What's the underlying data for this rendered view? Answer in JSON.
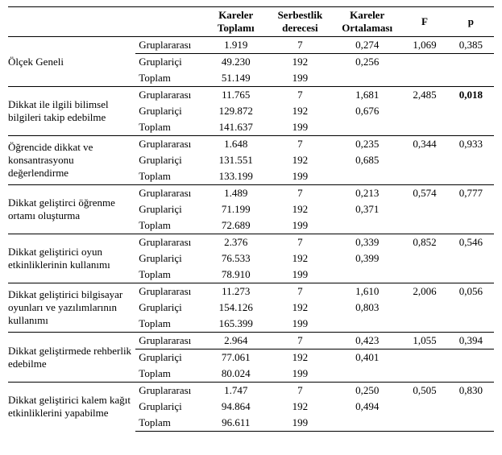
{
  "headers": {
    "c1": "",
    "c2": "",
    "c3a": "Kareler",
    "c3b": "Toplamı",
    "c4a": "Serbestlik",
    "c4b": "derecesi",
    "c5a": "Kareler",
    "c5b": "Ortalaması",
    "c6": "F",
    "c7": "p"
  },
  "group_labels": {
    "between": "Gruplararası",
    "within": "Gruplariçi",
    "total": "Toplam"
  },
  "factors": [
    {
      "label": "Ölçek Geneli",
      "rows": [
        {
          "ss": "1.919",
          "df": "7",
          "ms": "0,274",
          "F": "1,069",
          "p": "0,385"
        },
        {
          "ss": "49.230",
          "df": "192",
          "ms": "0,256",
          "F": "",
          "p": ""
        },
        {
          "ss": "51.149",
          "df": "199",
          "ms": "",
          "F": "",
          "p": ""
        }
      ],
      "first_row_underline": true,
      "bold_p": false
    },
    {
      "label": "Dikkat ile ilgili bilimsel bilgileri takip edebilme",
      "rows": [
        {
          "ss": "11.765",
          "df": "7",
          "ms": "1,681",
          "F": "2,485",
          "p": "0,018"
        },
        {
          "ss": "129.872",
          "df": "192",
          "ms": "0,676",
          "F": "",
          "p": ""
        },
        {
          "ss": "141.637",
          "df": "199",
          "ms": "",
          "F": "",
          "p": ""
        }
      ],
      "bold_p": true
    },
    {
      "label": "Öğrencide dikkat ve konsantrasyonu değerlendirme",
      "rows": [
        {
          "ss": "1.648",
          "df": "7",
          "ms": "0,235",
          "F": "0,344",
          "p": "0,933"
        },
        {
          "ss": "131.551",
          "df": "192",
          "ms": "0,685",
          "F": "",
          "p": ""
        },
        {
          "ss": "133.199",
          "df": "199",
          "ms": "",
          "F": "",
          "p": ""
        }
      ],
      "bold_p": false
    },
    {
      "label": "Dikkat geliştirci öğrenme ortamı oluşturma",
      "rows": [
        {
          "ss": "1.489",
          "df": "7",
          "ms": "0,213",
          "F": "0,574",
          "p": "0,777"
        },
        {
          "ss": "71.199",
          "df": "192",
          "ms": "0,371",
          "F": "",
          "p": ""
        },
        {
          "ss": "72.689",
          "df": "199",
          "ms": "",
          "F": "",
          "p": ""
        }
      ],
      "bold_p": false
    },
    {
      "label": "Dikkat geliştirici oyun etkinliklerinin kullanımı",
      "rows": [
        {
          "ss": "2.376",
          "df": "7",
          "ms": "0,339",
          "F": "0,852",
          "p": "0,546"
        },
        {
          "ss": "76.533",
          "df": "192",
          "ms": "0,399",
          "F": "",
          "p": ""
        },
        {
          "ss": "78.910",
          "df": "199",
          "ms": "",
          "F": "",
          "p": ""
        }
      ],
      "bold_p": false
    },
    {
      "label": "Dikkat geliştirici bilgisayar oyunları ve yazılımlarının kullanımı",
      "rows": [
        {
          "ss": "11.273",
          "df": "7",
          "ms": "1,610",
          "F": "2,006",
          "p": "0,056"
        },
        {
          "ss": "154.126",
          "df": "192",
          "ms": "0,803",
          "F": "",
          "p": ""
        },
        {
          "ss": "165.399",
          "df": "199",
          "ms": "",
          "F": "",
          "p": ""
        }
      ],
      "bold_p": false
    },
    {
      "label": "Dikkat geliştirmede rehberlik edebilme",
      "rows": [
        {
          "ss": "2.964",
          "df": "7",
          "ms": "0,423",
          "F": "1,055",
          "p": "0,394"
        },
        {
          "ss": "77.061",
          "df": "192",
          "ms": "0,401",
          "F": "",
          "p": ""
        },
        {
          "ss": "80.024",
          "df": "199",
          "ms": "",
          "F": "",
          "p": ""
        }
      ],
      "first_row_underline": true,
      "bold_p": false
    },
    {
      "label": "Dikkat geliştirici kalem kağıt etkinliklerini yapabilme",
      "rows": [
        {
          "ss": "1.747",
          "df": "7",
          "ms": "0,250",
          "F": "0,505",
          "p": "0,830"
        },
        {
          "ss": "94.864",
          "df": "192",
          "ms": "0,494",
          "F": "",
          "p": ""
        },
        {
          "ss": "96.611",
          "df": "199",
          "ms": "",
          "F": "",
          "p": ""
        }
      ],
      "bold_p": false
    }
  ]
}
